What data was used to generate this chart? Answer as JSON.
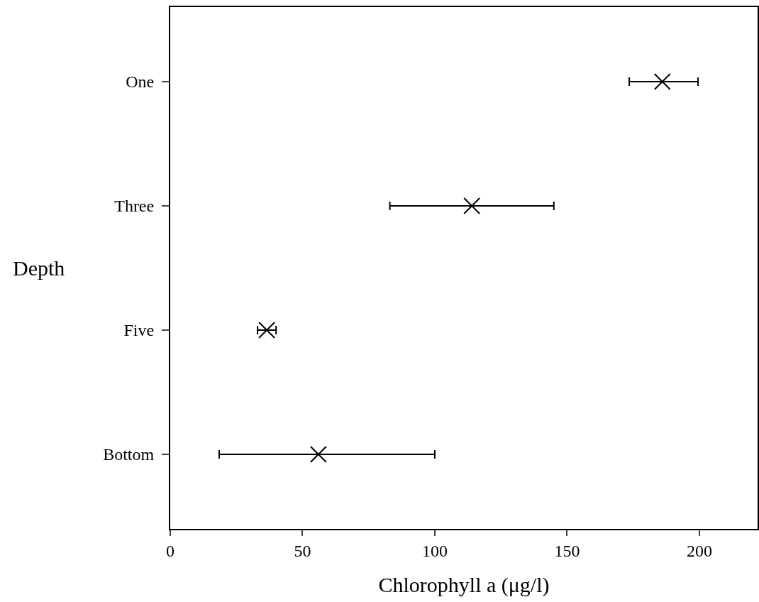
{
  "chart_data": {
    "type": "scatter",
    "orientation": "horizontal",
    "xlabel": "Chlorophyll a (μg/l)",
    "ylabel": "Depth",
    "categories": [
      "One",
      "Three",
      "Five",
      "Bottom"
    ],
    "values": [
      186,
      114,
      36.5,
      56
    ],
    "errors": [
      [
        173.5,
        199.5
      ],
      [
        83,
        145
      ],
      [
        33,
        40
      ],
      [
        18.5,
        100
      ]
    ],
    "color": "#000000",
    "marker": "cross",
    "xlim": [
      0,
      222
    ],
    "xticks": [
      0,
      50,
      100,
      150,
      200
    ],
    "grid": false
  }
}
